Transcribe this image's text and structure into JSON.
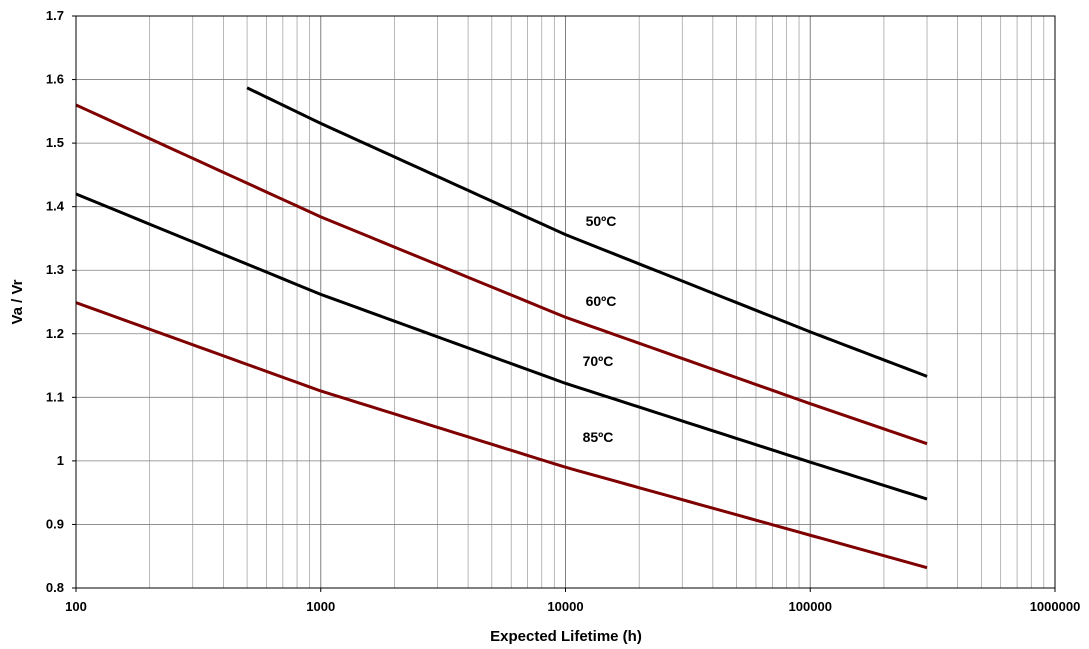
{
  "chart_data": {
    "type": "line",
    "title": "",
    "xlabel": "Expected Lifetime (h)",
    "ylabel": "Va / Vr",
    "x_scale": "log",
    "xlim": [
      100,
      1000000
    ],
    "ylim": [
      0.8,
      1.7
    ],
    "grid": true,
    "legend": "none",
    "x_tick_labels": [
      "100",
      "1000",
      "10000",
      "100000",
      "1000000"
    ],
    "y_tick_labels": [
      "0.8",
      "0.9",
      "1",
      "1.1",
      "1.2",
      "1.3",
      "1.4",
      "1.5",
      "1.6",
      "1.7"
    ],
    "series": [
      {
        "name": "50ºC",
        "color": "#000000",
        "x": [
          500,
          1000,
          10000,
          100000,
          300000
        ],
        "y": [
          1.587,
          1.531,
          1.356,
          1.203,
          1.133
        ]
      },
      {
        "name": "60ºC",
        "color": "#7f0000",
        "x": [
          100,
          1000,
          10000,
          100000,
          300000
        ],
        "y": [
          1.56,
          1.384,
          1.226,
          1.09,
          1.027
        ]
      },
      {
        "name": "70ºC",
        "color": "#000000",
        "x": [
          100,
          1000,
          10000,
          100000,
          300000
        ],
        "y": [
          1.42,
          1.262,
          1.122,
          0.998,
          0.94
        ]
      },
      {
        "name": "85ºC",
        "color": "#7f0000",
        "x": [
          100,
          1000,
          10000,
          100000,
          300000
        ],
        "y": [
          1.249,
          1.11,
          0.99,
          0.883,
          0.832
        ]
      }
    ]
  }
}
